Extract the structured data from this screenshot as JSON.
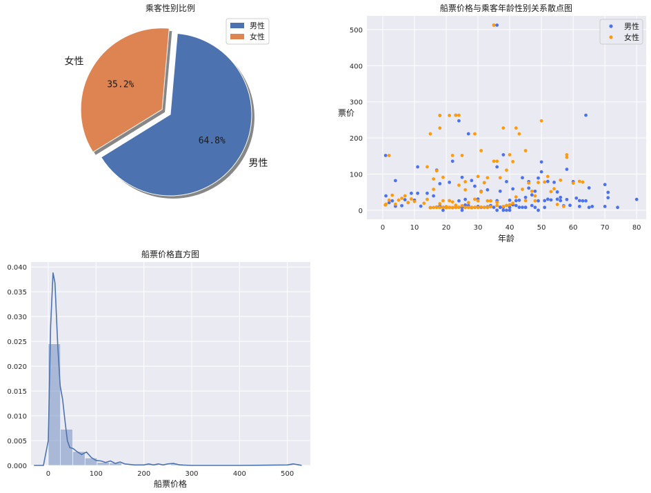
{
  "chart_data": [
    {
      "type": "pie",
      "title": "乘客性别比例",
      "slices": [
        {
          "label": "男性",
          "value": 64.8,
          "pct_label": "64.8%",
          "color": "#4c72b0"
        },
        {
          "label": "女性",
          "value": 35.2,
          "pct_label": "35.2%",
          "color": "#dd8452"
        }
      ],
      "legend": [
        "男性",
        "女性"
      ],
      "legend_position": "top-right"
    },
    {
      "type": "scatter",
      "title": "船票价格与乘客年龄性别关系散点图",
      "xlabel": "年龄",
      "ylabel": "票价",
      "xlim": [
        -5,
        83
      ],
      "ylim": [
        -25,
        538
      ],
      "xticks": [
        0,
        10,
        20,
        30,
        40,
        50,
        60,
        70,
        80
      ],
      "yticks": [
        0,
        100,
        200,
        300,
        400,
        500
      ],
      "grid": true,
      "legend_position": "top-right",
      "series": [
        {
          "name": "男性",
          "color": "#4c72f0",
          "points": [
            [
              0.9,
              151.6
            ],
            [
              1,
              39.7
            ],
            [
              2,
              21
            ],
            [
              3,
              26
            ],
            [
              4,
              81.9
            ],
            [
              4,
              11.1
            ],
            [
              6,
              12.5
            ],
            [
              7,
              29.1
            ],
            [
              8,
              21.1
            ],
            [
              9,
              46.9
            ],
            [
              10,
              27.9
            ],
            [
              11,
              120
            ],
            [
              11,
              46.9
            ],
            [
              12,
              11.2
            ],
            [
              14,
              46.9
            ],
            [
              15,
              7.2
            ],
            [
              16,
              39.7
            ],
            [
              17,
              110.9
            ],
            [
              18,
              262.4
            ],
            [
              18,
              11.5
            ],
            [
              19,
              7.9
            ],
            [
              20,
              7.2
            ],
            [
              21,
              77.3
            ],
            [
              22,
              135.6
            ],
            [
              23,
              263
            ],
            [
              24,
              247.5
            ],
            [
              25,
              91
            ],
            [
              26,
              30
            ],
            [
              27,
              211.5
            ],
            [
              28,
              82.2
            ],
            [
              29,
              66.6
            ],
            [
              30,
              31
            ],
            [
              31,
              52
            ],
            [
              32,
              76.3
            ],
            [
              33,
              56.5
            ],
            [
              34,
              26
            ],
            [
              35,
              512.3
            ],
            [
              36,
              512.3
            ],
            [
              36,
              120
            ],
            [
              37,
              52.6
            ],
            [
              38,
              153.5
            ],
            [
              39,
              79.2
            ],
            [
              40,
              27.7
            ],
            [
              41,
              59
            ],
            [
              42,
              26.5
            ],
            [
              43,
              27.7
            ],
            [
              44,
              90
            ],
            [
              45,
              35.5
            ],
            [
              46,
              61.2
            ],
            [
              47,
              42.4
            ],
            [
              48,
              52.6
            ],
            [
              49,
              89.1
            ],
            [
              50,
              106.4
            ],
            [
              50,
              133.7
            ],
            [
              51,
              26.6
            ],
            [
              52,
              79.6
            ],
            [
              53,
              28.5
            ],
            [
              54,
              77.3
            ],
            [
              55,
              30.5
            ],
            [
              56,
              35.5
            ],
            [
              57,
              12.4
            ],
            [
              58,
              113.3
            ],
            [
              60,
              79.2
            ],
            [
              61,
              33.5
            ],
            [
              62,
              10.5
            ],
            [
              63,
              26
            ],
            [
              64,
              263
            ],
            [
              65,
              61.9
            ],
            [
              66,
              10.5
            ],
            [
              70,
              71
            ],
            [
              71,
              49.5
            ],
            [
              71,
              34.7
            ],
            [
              74,
              7.8
            ],
            [
              80,
              30
            ],
            [
              22,
              7.2
            ],
            [
              24,
              8.1
            ],
            [
              26,
              7.9
            ],
            [
              28,
              7.9
            ],
            [
              29,
              7.9
            ],
            [
              30,
              8.1
            ],
            [
              31,
              7.8
            ],
            [
              32,
              8.1
            ],
            [
              33,
              9.5
            ],
            [
              35,
              8.1
            ],
            [
              37,
              7.9
            ],
            [
              39,
              13
            ],
            [
              40,
              7.9
            ],
            [
              42,
              13
            ],
            [
              44,
              8.1
            ],
            [
              45,
              7.8
            ],
            [
              47,
              13
            ],
            [
              49,
              26
            ],
            [
              51,
              7.8
            ],
            [
              24,
              26
            ],
            [
              27,
              13
            ],
            [
              19,
              8.1
            ],
            [
              21,
              7.8
            ],
            [
              25,
              7.7
            ],
            [
              34,
              13
            ],
            [
              38,
              7.9
            ],
            [
              45,
              8.1
            ],
            [
              59,
              13.5
            ],
            [
              62,
              26.6
            ],
            [
              65,
              7.8
            ],
            [
              70,
              10.5
            ],
            [
              18,
              73.5
            ],
            [
              20,
              9.8
            ],
            [
              30,
              10.5
            ],
            [
              36,
              26.4
            ],
            [
              48,
              7.8
            ],
            [
              55,
              50.5
            ],
            [
              28,
              7.2
            ],
            [
              33,
              7.9
            ],
            [
              23,
              7.9
            ],
            [
              17,
              8.7
            ],
            [
              26,
              14.5
            ],
            [
              37,
              8.7
            ],
            [
              41,
              15
            ],
            [
              58,
              29.7
            ],
            [
              43,
              8.1
            ],
            [
              46,
              79.2
            ],
            [
              52,
              30.5
            ],
            [
              56,
              26.6
            ],
            [
              64,
              26
            ],
            [
              19,
              0
            ],
            [
              38,
              0
            ],
            [
              40,
              0
            ],
            [
              49,
              0
            ],
            [
              36,
              0
            ],
            [
              25,
              0
            ],
            [
              39,
              0
            ]
          ]
        },
        {
          "name": "女性",
          "color": "#ff9a0a",
          "points": [
            [
              0.8,
              14.4
            ],
            [
              1,
              16.7
            ],
            [
              2,
              151.6
            ],
            [
              2,
              27.9
            ],
            [
              3,
              41.6
            ],
            [
              4,
              16.7
            ],
            [
              5,
              27.8
            ],
            [
              6,
              33
            ],
            [
              7,
              39.7
            ],
            [
              8,
              21.1
            ],
            [
              9,
              31.3
            ],
            [
              10,
              24.2
            ],
            [
              13,
              19.3
            ],
            [
              14,
              120
            ],
            [
              15,
              211.3
            ],
            [
              16,
              57.8
            ],
            [
              17,
              108.9
            ],
            [
              18,
              262.4
            ],
            [
              18,
              227.5
            ],
            [
              19,
              91.1
            ],
            [
              20,
              9.8
            ],
            [
              21,
              262.4
            ],
            [
              22,
              151.6
            ],
            [
              23,
              263
            ],
            [
              24,
              263
            ],
            [
              24,
              69.3
            ],
            [
              25,
              151.6
            ],
            [
              26,
              78.9
            ],
            [
              28,
              7.9
            ],
            [
              29,
              211.3
            ],
            [
              30,
              93.5
            ],
            [
              31,
              164.9
            ],
            [
              32,
              76.3
            ],
            [
              33,
              90
            ],
            [
              34,
              26
            ],
            [
              35,
              512.3
            ],
            [
              35,
              135.6
            ],
            [
              36,
              135.6
            ],
            [
              37,
              90
            ],
            [
              38,
              227.5
            ],
            [
              39,
              110.9
            ],
            [
              40,
              153.5
            ],
            [
              41,
              134.5
            ],
            [
              42,
              227.5
            ],
            [
              43,
              211.3
            ],
            [
              44,
              57.9
            ],
            [
              45,
              164.9
            ],
            [
              46,
              75.3
            ],
            [
              47,
              52.6
            ],
            [
              48,
              39.6
            ],
            [
              49,
              76.7
            ],
            [
              50,
              247.5
            ],
            [
              51,
              77.9
            ],
            [
              52,
              93.5
            ],
            [
              53,
              51.5
            ],
            [
              54,
              59.4
            ],
            [
              55,
              16
            ],
            [
              56,
              83.2
            ],
            [
              57,
              10.5
            ],
            [
              58,
              153.5
            ],
            [
              58,
              146.5
            ],
            [
              60,
              75.2
            ],
            [
              62,
              80
            ],
            [
              63,
              77.9
            ],
            [
              15,
              7.2
            ],
            [
              16,
              7.7
            ],
            [
              17,
              7.9
            ],
            [
              18,
              7.8
            ],
            [
              19,
              7.9
            ],
            [
              20,
              7.2
            ],
            [
              21,
              7.8
            ],
            [
              22,
              7.7
            ],
            [
              23,
              7.9
            ],
            [
              24,
              8.1
            ],
            [
              26,
              7.9
            ],
            [
              27,
              7.8
            ],
            [
              28,
              7.9
            ],
            [
              29,
              8.1
            ],
            [
              30,
              7.8
            ],
            [
              31,
              8.7
            ],
            [
              32,
              7.9
            ],
            [
              33,
              8.1
            ],
            [
              34,
              9.5
            ],
            [
              36,
              13
            ],
            [
              38,
              10.5
            ],
            [
              39,
              13
            ],
            [
              40,
              15.2
            ],
            [
              41,
              19.3
            ],
            [
              14,
              30.1
            ],
            [
              22,
              23
            ],
            [
              27,
              21
            ],
            [
              30,
              26
            ],
            [
              33,
              26
            ],
            [
              45,
              26.6
            ],
            [
              18,
              18
            ],
            [
              25,
              12.5
            ],
            [
              36,
              22
            ],
            [
              21,
              26.6
            ],
            [
              16,
              86.5
            ],
            [
              26,
              56.5
            ],
            [
              31,
              50.5
            ],
            [
              42,
              36.8
            ],
            [
              48,
              25.9
            ],
            [
              29,
              30.5
            ],
            [
              23,
              13.8
            ],
            [
              19,
              26.3
            ]
          ]
        }
      ]
    },
    {
      "type": "bar",
      "title": "船票价格直方图",
      "xlabel": "船票价格",
      "ylabel": "",
      "xlim": [
        -36,
        548
      ],
      "ylim": [
        0,
        0.041
      ],
      "xticks": [
        0,
        100,
        200,
        300,
        400,
        500
      ],
      "yticks": [
        0,
        0.005,
        0.01,
        0.015,
        0.02,
        0.025,
        0.03,
        0.035,
        0.04
      ],
      "ytick_labels": [
        "0.000",
        "0.005",
        "0.010",
        "0.015",
        "0.020",
        "0.025",
        "0.030",
        "0.035",
        "0.040"
      ],
      "grid": true,
      "bar_color": "#4c72b0",
      "bin_width": 25.6,
      "bins_start": 0,
      "hist_density": [
        0.0245,
        0.0073,
        0.0028,
        0.0015,
        0.0006,
        0.0005,
        0.0001,
        0,
        0.0002,
        0.0001,
        0.0003,
        0,
        0,
        0,
        0,
        0,
        0,
        0,
        0,
        0.0002
      ],
      "kde": [
        [
          -30,
          0
        ],
        [
          -10,
          0
        ],
        [
          0,
          0.005
        ],
        [
          5,
          0.028
        ],
        [
          10,
          0.0388
        ],
        [
          14,
          0.0368
        ],
        [
          20,
          0.024
        ],
        [
          25,
          0.016
        ],
        [
          30,
          0.0133
        ],
        [
          35,
          0.009
        ],
        [
          40,
          0.005
        ],
        [
          45,
          0.0036
        ],
        [
          52,
          0.0034
        ],
        [
          60,
          0.0028
        ],
        [
          70,
          0.0022
        ],
        [
          80,
          0.0027
        ],
        [
          90,
          0.0016
        ],
        [
          100,
          0.001
        ],
        [
          110,
          0.0009
        ],
        [
          120,
          0.0006
        ],
        [
          130,
          0.0009
        ],
        [
          140,
          0.0004
        ],
        [
          150,
          0.0007
        ],
        [
          160,
          0.0003
        ],
        [
          180,
          0.0001
        ],
        [
          200,
          0.0001
        ],
        [
          210,
          0.0003
        ],
        [
          220,
          0.0001
        ],
        [
          230,
          0.0003
        ],
        [
          240,
          0.0001
        ],
        [
          250,
          0.0003
        ],
        [
          262,
          0.0004
        ],
        [
          275,
          0.0001
        ],
        [
          300,
          0
        ],
        [
          400,
          0
        ],
        [
          500,
          0.0001
        ],
        [
          512,
          0.0003
        ],
        [
          525,
          0.0001
        ],
        [
          530,
          0
        ]
      ]
    }
  ]
}
